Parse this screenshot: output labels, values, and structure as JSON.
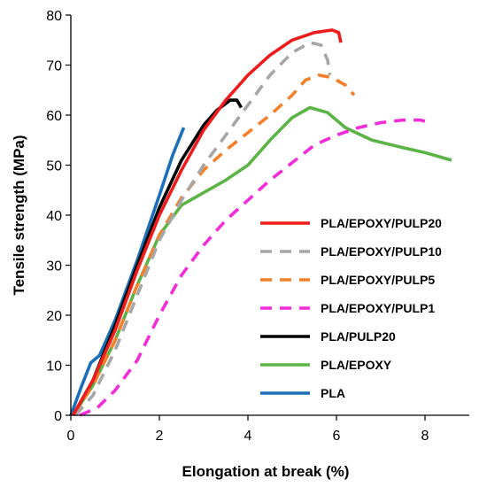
{
  "chart_data": {
    "type": "line",
    "title": "",
    "xlabel": "Elongation at break (%)",
    "ylabel": "Tensile strength (MPa)",
    "xlim": [
      0,
      9
    ],
    "ylim": [
      0,
      80
    ],
    "x_ticks": [
      0,
      2,
      4,
      6,
      8
    ],
    "y_ticks": [
      0,
      10,
      20,
      30,
      40,
      50,
      60,
      70,
      80
    ],
    "grid": false,
    "legend_position": "right",
    "series": [
      {
        "name": "PLA/EPOXY/PULP20",
        "color": "#ee1c1c",
        "dash": "solid",
        "points": [
          [
            0.05,
            0
          ],
          [
            0.5,
            7
          ],
          [
            1,
            17
          ],
          [
            1.5,
            29
          ],
          [
            2,
            40
          ],
          [
            2.5,
            49
          ],
          [
            3,
            57
          ],
          [
            3.5,
            63
          ],
          [
            4,
            68
          ],
          [
            4.5,
            72
          ],
          [
            5,
            75
          ],
          [
            5.5,
            76.5
          ],
          [
            5.9,
            77
          ],
          [
            6.05,
            76.5
          ],
          [
            6.1,
            74.5
          ]
        ]
      },
      {
        "name": "PLA/EPOXY/PULP10",
        "color": "#a6a6a6",
        "dash": "dashed",
        "points": [
          [
            0.1,
            0
          ],
          [
            0.5,
            4
          ],
          [
            1,
            13
          ],
          [
            1.5,
            24
          ],
          [
            2,
            35
          ],
          [
            2.5,
            43
          ],
          [
            3,
            50
          ],
          [
            3.5,
            56
          ],
          [
            4,
            62
          ],
          [
            4.5,
            68
          ],
          [
            5,
            72.5
          ],
          [
            5.4,
            74.5
          ],
          [
            5.65,
            74
          ],
          [
            5.8,
            71
          ],
          [
            5.85,
            68
          ]
        ]
      },
      {
        "name": "PLA/EPOXY/PULP5",
        "color": "#f4802b",
        "dash": "dashed",
        "points": [
          [
            0.05,
            0
          ],
          [
            0.5,
            6
          ],
          [
            1,
            15
          ],
          [
            1.5,
            26
          ],
          [
            2,
            36
          ],
          [
            2.5,
            43.5
          ],
          [
            3,
            49
          ],
          [
            3.5,
            53
          ],
          [
            4,
            56.5
          ],
          [
            4.5,
            60
          ],
          [
            5,
            64
          ],
          [
            5.3,
            67
          ],
          [
            5.6,
            68
          ],
          [
            5.9,
            67.5
          ],
          [
            6.2,
            66
          ],
          [
            6.4,
            64
          ]
        ]
      },
      {
        "name": "PLA/EPOXY/PULP1",
        "color": "#f22cd8",
        "dash": "dashed",
        "points": [
          [
            0.2,
            0
          ],
          [
            0.6,
            1.5
          ],
          [
            1,
            5
          ],
          [
            1.5,
            11
          ],
          [
            2,
            20
          ],
          [
            2.5,
            28
          ],
          [
            3,
            34
          ],
          [
            3.5,
            39
          ],
          [
            4,
            43
          ],
          [
            4.5,
            47
          ],
          [
            5,
            50.5
          ],
          [
            5.5,
            54
          ],
          [
            6,
            56
          ],
          [
            6.5,
            57.5
          ],
          [
            7,
            58.5
          ],
          [
            7.5,
            59
          ],
          [
            7.9,
            59
          ],
          [
            8.1,
            58.5
          ]
        ]
      },
      {
        "name": "PLA/PULP20",
        "color": "#000000",
        "dash": "solid",
        "points": [
          [
            0.05,
            0
          ],
          [
            0.5,
            7
          ],
          [
            1,
            18
          ],
          [
            1.5,
            30
          ],
          [
            2,
            41.5
          ],
          [
            2.5,
            51
          ],
          [
            3,
            58
          ],
          [
            3.3,
            61
          ],
          [
            3.6,
            63
          ],
          [
            3.75,
            63
          ],
          [
            3.85,
            61.5
          ]
        ]
      },
      {
        "name": "PLA/EPOXY",
        "color": "#5cb346",
        "dash": "solid",
        "points": [
          [
            0.05,
            0
          ],
          [
            0.5,
            6
          ],
          [
            1,
            15
          ],
          [
            1.5,
            26
          ],
          [
            2,
            36
          ],
          [
            2.5,
            42
          ],
          [
            3,
            44.5
          ],
          [
            3.5,
            47
          ],
          [
            4,
            50
          ],
          [
            4.5,
            55
          ],
          [
            5,
            59.5
          ],
          [
            5.4,
            61.5
          ],
          [
            5.8,
            60.5
          ],
          [
            6.2,
            57.5
          ],
          [
            6.8,
            55
          ],
          [
            7.5,
            53.5
          ],
          [
            8,
            52.5
          ],
          [
            8.6,
            51
          ]
        ]
      },
      {
        "name": "PLA",
        "color": "#1b6fb8",
        "dash": "solid",
        "points": [
          [
            0,
            0
          ],
          [
            0.25,
            6
          ],
          [
            0.45,
            10.5
          ],
          [
            0.65,
            12
          ],
          [
            1,
            19
          ],
          [
            1.5,
            31
          ],
          [
            2,
            44
          ],
          [
            2.3,
            52
          ],
          [
            2.55,
            57.5
          ]
        ]
      }
    ]
  }
}
